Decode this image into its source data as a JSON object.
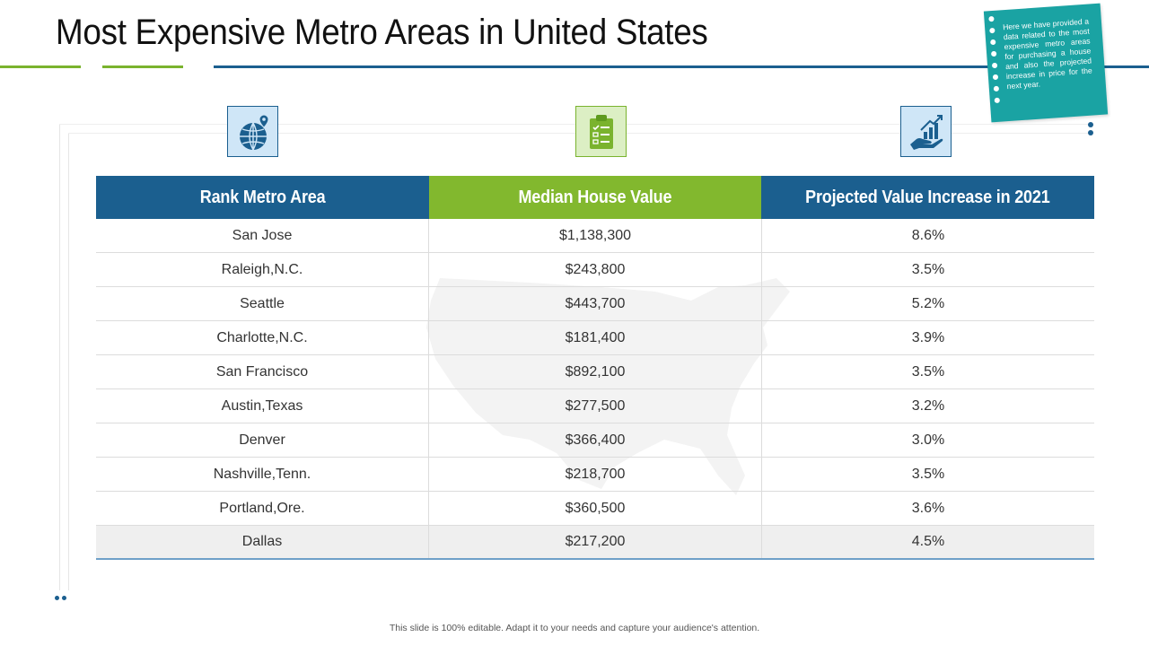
{
  "slide": {
    "title": "Most Expensive Metro Areas in United States",
    "note": "Here we have provided a data related to the most expensive metro areas for purchasing a house and also the projected increase in price for the next year.",
    "footer": "This slide is 100% editable. Adapt it to your needs and capture your audience's attention."
  },
  "icons": [
    {
      "name": "globe-pin-icon"
    },
    {
      "name": "clipboard-checklist-icon"
    },
    {
      "name": "hand-growth-chart-icon"
    }
  ],
  "table": {
    "headers": [
      "Rank Metro Area",
      "Median House Value",
      "Projected Value Increase in 2021"
    ],
    "rows": [
      [
        "San Jose",
        "$1,138,300",
        "8.6%"
      ],
      [
        "Raleigh,N.C.",
        "$243,800",
        "3.5%"
      ],
      [
        "Seattle",
        "$443,700",
        "5.2%"
      ],
      [
        "Charlotte,N.C.",
        "$181,400",
        "3.9%"
      ],
      [
        "San Francisco",
        "$892,100",
        "3.5%"
      ],
      [
        "Austin,Texas",
        "$277,500",
        "3.2%"
      ],
      [
        "Denver",
        "$366,400",
        "3.0%"
      ],
      [
        "Nashville,Tenn.",
        "$218,700",
        "3.5%"
      ],
      [
        "Portland,Ore.",
        "$360,500",
        "3.6%"
      ],
      [
        "Dallas",
        "$217,200",
        "4.5%"
      ]
    ]
  },
  "colors": {
    "blue": "#1b5f8f",
    "green": "#82b82e",
    "teal": "#1aa3a3"
  }
}
